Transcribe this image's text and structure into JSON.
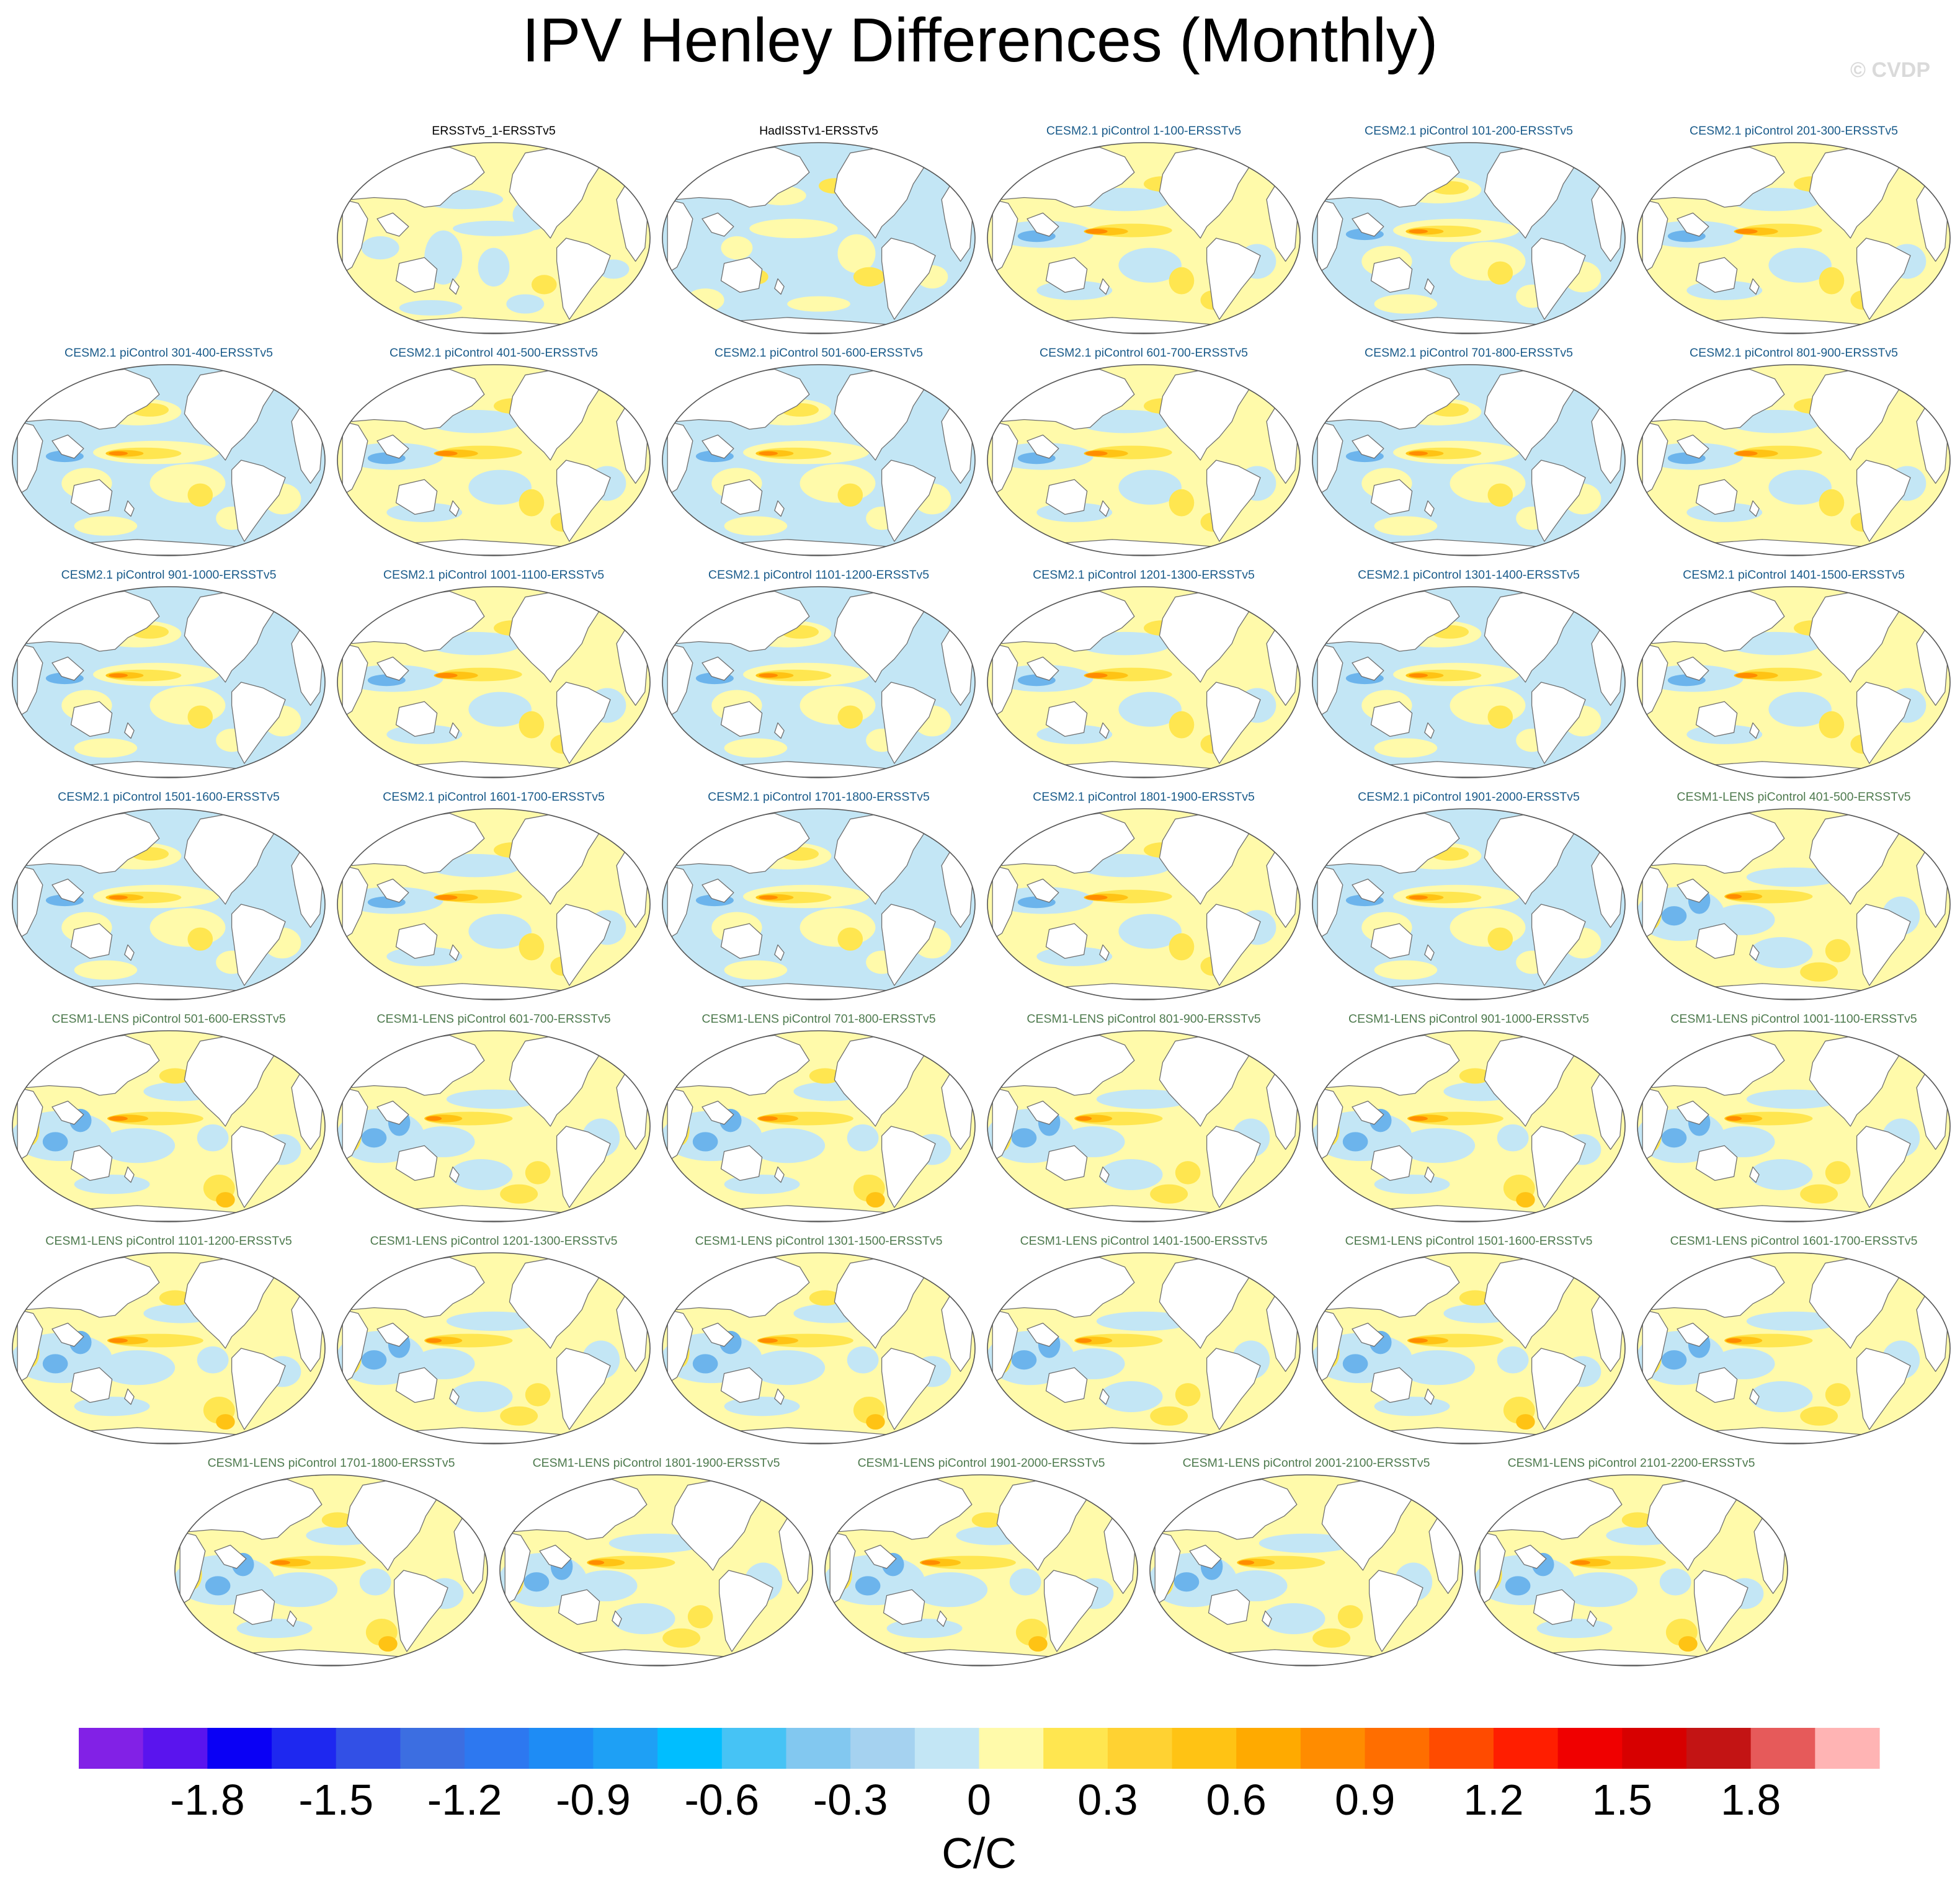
{
  "title": "IPV Henley Differences (Monthly)",
  "watermark": "© CVDP",
  "chart_data": {
    "type": "heatmap",
    "title": "IPV Henley Differences (Monthly)",
    "projection": "Robinson, Pacific-centered global maps",
    "colorbar": {
      "label": "C/C",
      "min": -2.1,
      "max": 2.1,
      "step": 0.15,
      "tick_labels": [
        "-1.8",
        "-1.5",
        "-1.2",
        "-0.9",
        "-0.6",
        "-0.3",
        "0",
        "0.3",
        "0.6",
        "0.9",
        "1.2",
        "1.5",
        "1.8"
      ],
      "colors": [
        "#8221e6",
        "#5a14ee",
        "#0a00f5",
        "#1e28f0",
        "#3250e6",
        "#3c6ee1",
        "#2d78f0",
        "#1e8cf5",
        "#1ea0f5",
        "#00beff",
        "#46c3f5",
        "#82c8f0",
        "#a5d2f0",
        "#c3e6f5",
        "#fffaaa",
        "#ffe650",
        "#ffd232",
        "#ffc314",
        "#ffaa00",
        "#ff8c00",
        "#ff6e00",
        "#ff4b00",
        "#ff1e00",
        "#f00000",
        "#d70000",
        "#c31414",
        "#e65a5a",
        "#ffb4b4"
      ]
    },
    "pattern_palette": {
      "strong_blue": "#6cb4ec",
      "blue": "#c3e6f5",
      "yellow": "#fffaaa",
      "gold": "#ffe650",
      "orange": "#ffc314",
      "deep_orange": "#ff8c00",
      "red": "#ff4b00"
    },
    "rows": [
      {
        "panels": [
          {
            "label": "ERSSTv5_1-ERSSTv5",
            "group": "obs",
            "variant": 0
          },
          {
            "label": "HadISSTv1-ERSSTv5",
            "group": "obs",
            "variant": 1
          },
          {
            "label": "CESM2.1 piControl 1-100-ERSSTv5",
            "group": "cesm2",
            "variant": 2
          },
          {
            "label": "CESM2.1 piControl 101-200-ERSSTv5",
            "group": "cesm2",
            "variant": 3
          },
          {
            "label": "CESM2.1 piControl 201-300-ERSSTv5",
            "group": "cesm2",
            "variant": 2
          }
        ]
      },
      {
        "panels": [
          {
            "label": "CESM2.1 piControl 301-400-ERSSTv5",
            "group": "cesm2",
            "variant": 3
          },
          {
            "label": "CESM2.1 piControl 401-500-ERSSTv5",
            "group": "cesm2",
            "variant": 2
          },
          {
            "label": "CESM2.1 piControl 501-600-ERSSTv5",
            "group": "cesm2",
            "variant": 3
          },
          {
            "label": "CESM2.1 piControl 601-700-ERSSTv5",
            "group": "cesm2",
            "variant": 2
          },
          {
            "label": "CESM2.1 piControl 701-800-ERSSTv5",
            "group": "cesm2",
            "variant": 3
          },
          {
            "label": "CESM2.1 piControl 801-900-ERSSTv5",
            "group": "cesm2",
            "variant": 2
          }
        ]
      },
      {
        "panels": [
          {
            "label": "CESM2.1 piControl 901-1000-ERSSTv5",
            "group": "cesm2",
            "variant": 3
          },
          {
            "label": "CESM2.1 piControl 1001-1100-ERSSTv5",
            "group": "cesm2",
            "variant": 2
          },
          {
            "label": "CESM2.1 piControl 1101-1200-ERSSTv5",
            "group": "cesm2",
            "variant": 3
          },
          {
            "label": "CESM2.1 piControl 1201-1300-ERSSTv5",
            "group": "cesm2",
            "variant": 2
          },
          {
            "label": "CESM2.1 piControl 1301-1400-ERSSTv5",
            "group": "cesm2",
            "variant": 3
          },
          {
            "label": "CESM2.1 piControl 1401-1500-ERSSTv5",
            "group": "cesm2",
            "variant": 2
          }
        ]
      },
      {
        "panels": [
          {
            "label": "CESM2.1 piControl 1501-1600-ERSSTv5",
            "group": "cesm2",
            "variant": 3
          },
          {
            "label": "CESM2.1 piControl 1601-1700-ERSSTv5",
            "group": "cesm2",
            "variant": 2
          },
          {
            "label": "CESM2.1 piControl 1701-1800-ERSSTv5",
            "group": "cesm2",
            "variant": 3
          },
          {
            "label": "CESM2.1 piControl 1801-1900-ERSSTv5",
            "group": "cesm2",
            "variant": 2
          },
          {
            "label": "CESM2.1 piControl 1901-2000-ERSSTv5",
            "group": "cesm2",
            "variant": 3
          },
          {
            "label": "CESM1-LENS piControl 401-500-ERSSTv5",
            "group": "cesm1",
            "variant": 4
          }
        ]
      },
      {
        "panels": [
          {
            "label": "CESM1-LENS piControl 501-600-ERSSTv5",
            "group": "cesm1",
            "variant": 5
          },
          {
            "label": "CESM1-LENS piControl 601-700-ERSSTv5",
            "group": "cesm1",
            "variant": 4
          },
          {
            "label": "CESM1-LENS piControl 701-800-ERSSTv5",
            "group": "cesm1",
            "variant": 5
          },
          {
            "label": "CESM1-LENS piControl 801-900-ERSSTv5",
            "group": "cesm1",
            "variant": 4
          },
          {
            "label": "CESM1-LENS piControl 901-1000-ERSSTv5",
            "group": "cesm1",
            "variant": 5
          },
          {
            "label": "CESM1-LENS piControl 1001-1100-ERSSTv5",
            "group": "cesm1",
            "variant": 4
          }
        ]
      },
      {
        "panels": [
          {
            "label": "CESM1-LENS piControl 1101-1200-ERSSTv5",
            "group": "cesm1",
            "variant": 5
          },
          {
            "label": "CESM1-LENS piControl 1201-1300-ERSSTv5",
            "group": "cesm1",
            "variant": 4
          },
          {
            "label": "CESM1-LENS piControl 1301-1500-ERSSTv5",
            "group": "cesm1",
            "variant": 5
          },
          {
            "label": "CESM1-LENS piControl 1401-1500-ERSSTv5",
            "group": "cesm1",
            "variant": 4
          },
          {
            "label": "CESM1-LENS piControl 1501-1600-ERSSTv5",
            "group": "cesm1",
            "variant": 5
          },
          {
            "label": "CESM1-LENS piControl 1601-1700-ERSSTv5",
            "group": "cesm1",
            "variant": 4
          }
        ]
      },
      {
        "panels": [
          {
            "label": "CESM1-LENS piControl 1701-1800-ERSSTv5",
            "group": "cesm1",
            "variant": 5
          },
          {
            "label": "CESM1-LENS piControl 1801-1900-ERSSTv5",
            "group": "cesm1",
            "variant": 4
          },
          {
            "label": "CESM1-LENS piControl 1901-2000-ERSSTv5",
            "group": "cesm1",
            "variant": 5
          },
          {
            "label": "CESM1-LENS piControl 2001-2100-ERSSTv5",
            "group": "cesm1",
            "variant": 4
          },
          {
            "label": "CESM1-LENS piControl 2101-2200-ERSSTv5",
            "group": "cesm1",
            "variant": 5
          }
        ]
      }
    ]
  }
}
